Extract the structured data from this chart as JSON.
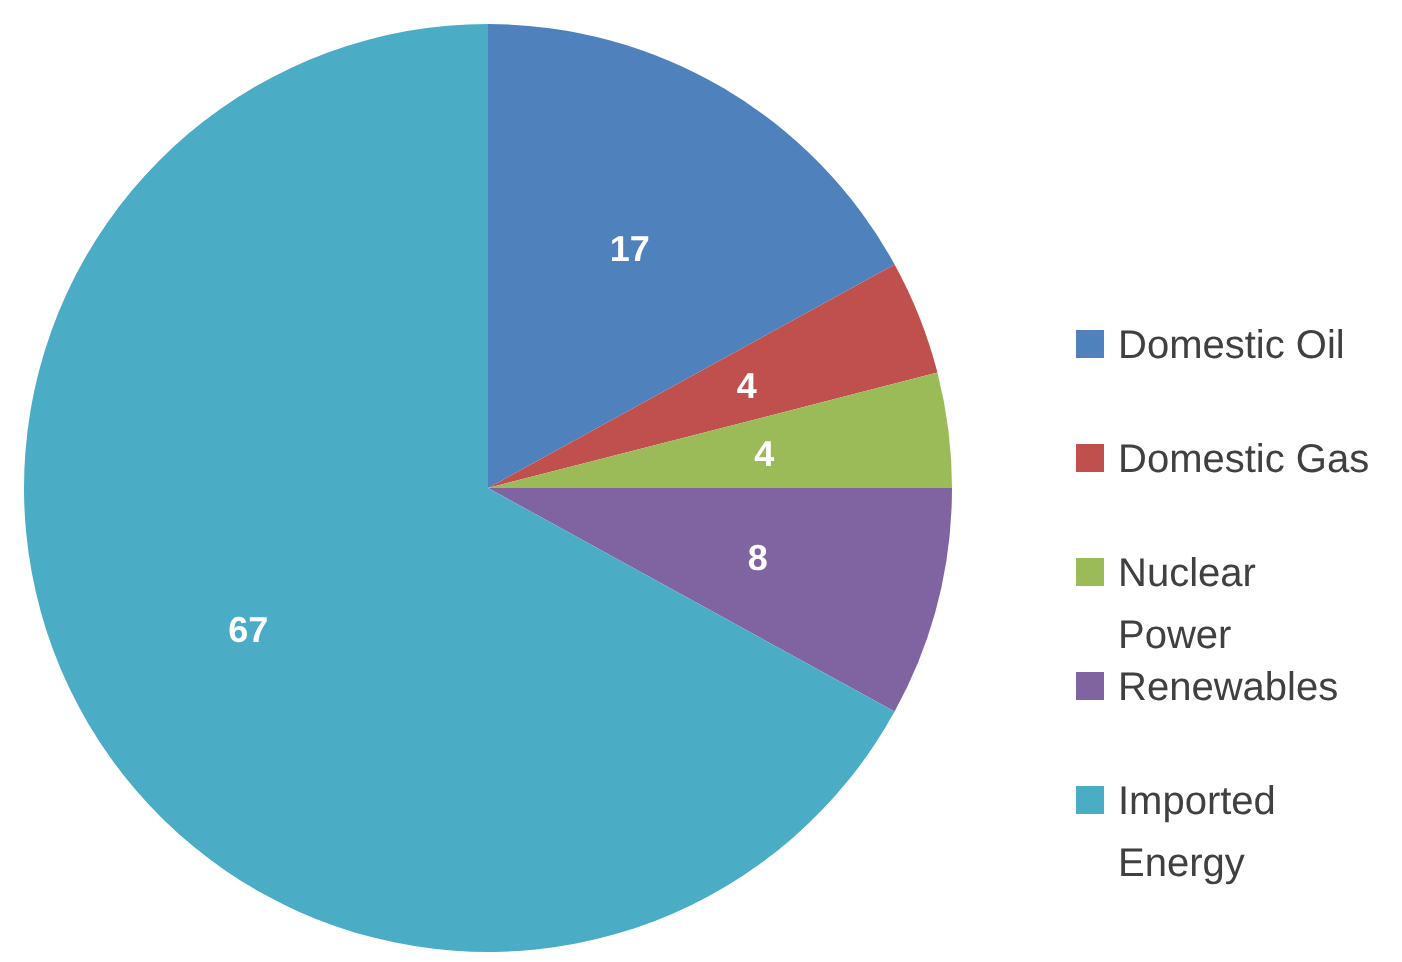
{
  "chart_data": {
    "type": "pie",
    "categories": [
      "Domestic Oil",
      "Domestic Gas",
      "Nuclear Power",
      "Renewables",
      "Imported Energy"
    ],
    "values": [
      17,
      4,
      4,
      8,
      67
    ],
    "colors": [
      "#4f81bd",
      "#c0504d",
      "#9bbb59",
      "#8064a2",
      "#4bacc6"
    ],
    "data_labels": true,
    "legend": "right"
  }
}
